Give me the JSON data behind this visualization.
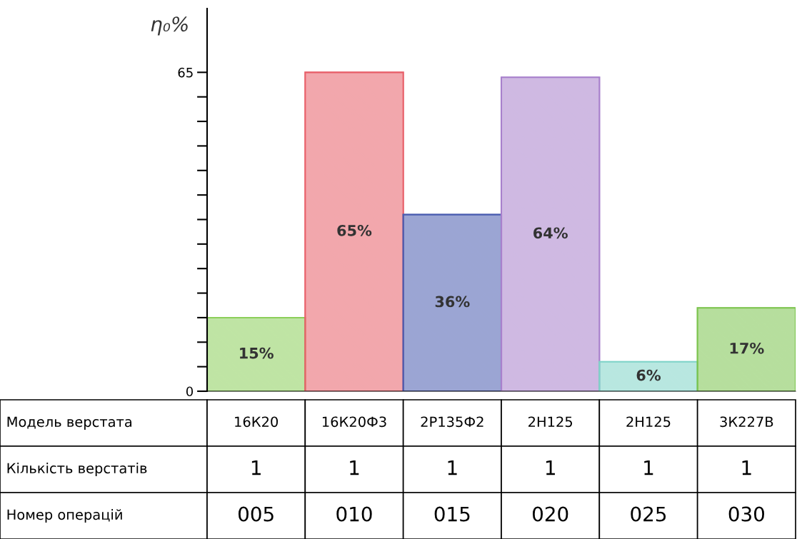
{
  "chart_data": {
    "type": "bar",
    "ylabel": "η₀%",
    "categories": [
      "16К20",
      "16К20Ф3",
      "2Р135Ф2",
      "2Н125",
      "2Н125",
      "3К227В"
    ],
    "values": [
      15,
      65,
      36,
      64,
      6,
      17
    ],
    "value_labels": [
      "15%",
      "65%",
      "36%",
      "64%",
      "6%",
      "17%"
    ],
    "colors": [
      "#8ccf5a",
      "#e8606a",
      "#4a5cb0",
      "#a880cc",
      "#7fd4c8",
      "#7cc44e"
    ],
    "ylim": [
      0,
      78
    ],
    "yticks": [
      0,
      {
        "value": 5,
        "label": null
      },
      {
        "value": 10,
        "label": null
      },
      {
        "value": 15,
        "label": null
      },
      {
        "value": 20,
        "label": null
      },
      {
        "value": 25,
        "label": null
      },
      {
        "value": 30,
        "label": null
      },
      {
        "value": 35,
        "label": null
      },
      {
        "value": 40,
        "label": null
      },
      {
        "value": 45,
        "label": null
      },
      {
        "value": 50,
        "label": null
      },
      {
        "value": 55,
        "label": null
      },
      {
        "value": 60,
        "label": null
      },
      65
    ],
    "annotations": [
      "Модель верстата",
      "Кількість верстатів",
      "Номер операцій",
      "1",
      "1",
      "1",
      "1",
      "1",
      "1",
      "005",
      "010",
      "015",
      "020",
      "025",
      "030"
    ]
  }
}
